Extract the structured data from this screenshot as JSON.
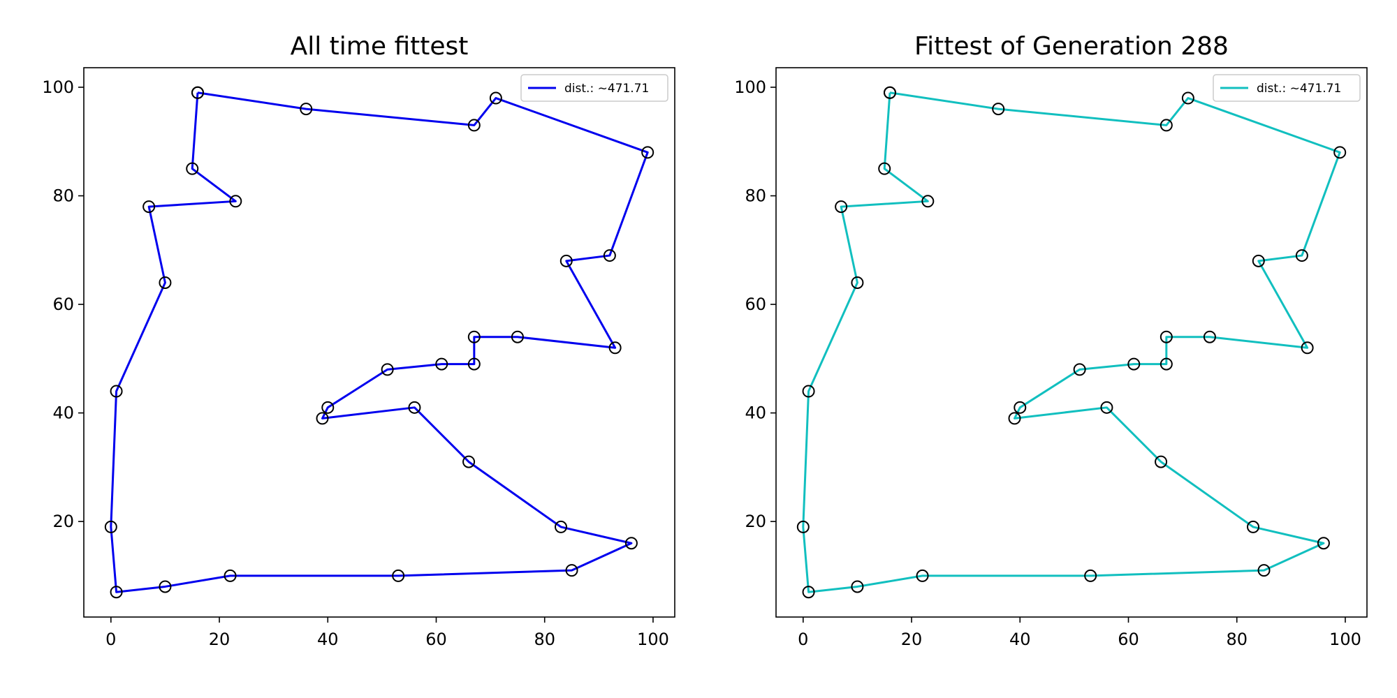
{
  "chart_data": [
    {
      "type": "line",
      "title": "All time fittest",
      "xlabel": "",
      "ylabel": "",
      "xlim": [
        -5,
        104
      ],
      "ylim": [
        2.4,
        103.6
      ],
      "xticks": [
        0,
        20,
        40,
        60,
        80,
        100
      ],
      "yticks": [
        20,
        40,
        60,
        80,
        100
      ],
      "xtick_labels": [
        "0",
        "20",
        "40",
        "60",
        "80",
        "100"
      ],
      "ytick_labels": [
        "20",
        "40",
        "60",
        "80",
        "100"
      ],
      "grid": false,
      "legend_position": "top-right",
      "legend": [
        "dist.: ~471.71"
      ],
      "series": [
        {
          "name": "dist.: ~471.71",
          "color": "#0000ee",
          "marker": "open-circle",
          "marker_color": "#000000",
          "x": [
            16,
            36,
            67,
            71,
            99,
            92,
            84,
            93,
            75,
            67,
            67,
            61,
            51,
            40,
            39,
            56,
            66,
            83,
            96,
            85,
            53,
            22,
            10,
            1,
            0,
            1,
            10,
            7,
            23,
            15,
            16
          ],
          "y": [
            99,
            96,
            93,
            98,
            88,
            69,
            68,
            52,
            54,
            54,
            49,
            49,
            48,
            41,
            39,
            41,
            31,
            19,
            16,
            11,
            10,
            10,
            8,
            7,
            19,
            44,
            64,
            78,
            79,
            85,
            99
          ]
        }
      ]
    },
    {
      "type": "line",
      "title": "Fittest of Generation 288",
      "xlabel": "",
      "ylabel": "",
      "xlim": [
        -5,
        104
      ],
      "ylim": [
        2.4,
        103.6
      ],
      "xticks": [
        0,
        20,
        40,
        60,
        80,
        100
      ],
      "yticks": [
        20,
        40,
        60,
        80,
        100
      ],
      "xtick_labels": [
        "0",
        "20",
        "40",
        "60",
        "80",
        "100"
      ],
      "ytick_labels": [
        "20",
        "40",
        "60",
        "80",
        "100"
      ],
      "grid": false,
      "legend_position": "top-right",
      "legend": [
        "dist.: ~471.71"
      ],
      "series": [
        {
          "name": "dist.: ~471.71",
          "color": "#11bfbf",
          "marker": "open-circle",
          "marker_color": "#000000",
          "x": [
            16,
            36,
            67,
            71,
            99,
            92,
            84,
            93,
            75,
            67,
            67,
            61,
            51,
            40,
            39,
            56,
            66,
            83,
            96,
            85,
            53,
            22,
            10,
            1,
            0,
            1,
            10,
            7,
            23,
            15,
            16
          ],
          "y": [
            99,
            96,
            93,
            98,
            88,
            69,
            68,
            52,
            54,
            54,
            49,
            49,
            48,
            41,
            39,
            41,
            31,
            19,
            16,
            11,
            10,
            10,
            8,
            7,
            19,
            44,
            64,
            78,
            79,
            85,
            99
          ]
        }
      ]
    }
  ]
}
